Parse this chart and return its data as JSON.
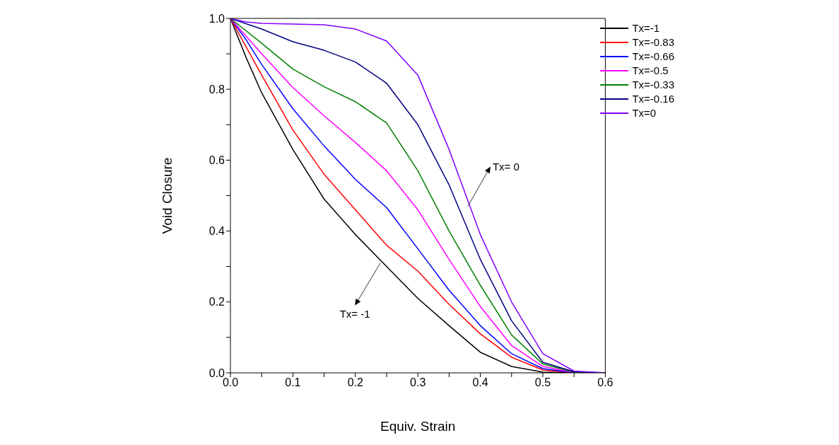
{
  "chart_data": {
    "type": "line",
    "xlabel": "Equiv. Strain",
    "ylabel": "Void Closure",
    "x": [
      0,
      0.025,
      0.05,
      0.1,
      0.15,
      0.2,
      0.25,
      0.3,
      0.35,
      0.4,
      0.45,
      0.5,
      0.55,
      0.6
    ],
    "series": [
      {
        "name": "Tx=-1",
        "color": "#000000",
        "values": [
          1,
          0.89,
          0.79,
          0.63,
          0.49,
          0.39,
          0.3,
          0.21,
          0.133,
          0.058,
          0.018,
          0.002,
          0,
          0
        ]
      },
      {
        "name": "Tx=-0.83",
        "color": "#ff0000",
        "values": [
          1,
          0.92,
          0.84,
          0.685,
          0.56,
          0.46,
          0.36,
          0.287,
          0.193,
          0.11,
          0.044,
          0.008,
          0,
          0
        ]
      },
      {
        "name": "Tx=-0.66",
        "color": "#0000ff",
        "values": [
          1,
          0.94,
          0.87,
          0.745,
          0.64,
          0.546,
          0.466,
          0.35,
          0.233,
          0.133,
          0.054,
          0.012,
          0,
          0
        ]
      },
      {
        "name": "Tx=-0.5",
        "color": "#ff00ff",
        "values": [
          1,
          0.95,
          0.9,
          0.805,
          0.725,
          0.65,
          0.57,
          0.46,
          0.32,
          0.187,
          0.077,
          0.018,
          0.001,
          0
        ]
      },
      {
        "name": "Tx=-0.33",
        "color": "#008000",
        "values": [
          1,
          0.965,
          0.93,
          0.857,
          0.807,
          0.765,
          0.705,
          0.57,
          0.4,
          0.247,
          0.107,
          0.025,
          0.002,
          0
        ]
      },
      {
        "name": "Tx=-0.16",
        "color": "#000080",
        "values": [
          1,
          0.985,
          0.97,
          0.934,
          0.91,
          0.877,
          0.817,
          0.7,
          0.53,
          0.32,
          0.147,
          0.03,
          0.003,
          0
        ]
      },
      {
        "name": "Tx=0",
        "color": "#8000ff",
        "values": [
          1,
          0.99,
          0.986,
          0.984,
          0.982,
          0.97,
          0.936,
          0.84,
          0.63,
          0.39,
          0.2,
          0.054,
          0.005,
          0
        ]
      }
    ],
    "xlim": [
      0,
      0.6
    ],
    "xticks": [
      {
        "value": 0,
        "label": "0.0"
      },
      {
        "value": 0.05,
        "label": null
      },
      {
        "value": 0.1,
        "label": "0.1"
      },
      {
        "value": 0.15,
        "label": null
      },
      {
        "value": 0.2,
        "label": "0.2"
      },
      {
        "value": 0.25,
        "label": null
      },
      {
        "value": 0.3,
        "label": "0.3"
      },
      {
        "value": 0.35,
        "label": null
      },
      {
        "value": 0.4,
        "label": "0.4"
      },
      {
        "value": 0.45,
        "label": null
      },
      {
        "value": 0.5,
        "label": "0.5"
      },
      {
        "value": 0.55,
        "label": null
      },
      {
        "value": 0.6,
        "label": "0.6"
      }
    ],
    "ylim": [
      0,
      1
    ],
    "yticks": [
      {
        "value": 0,
        "label": "0.0"
      },
      {
        "value": 0.1,
        "label": null
      },
      {
        "value": 0.2,
        "label": "0.2"
      },
      {
        "value": 0.3,
        "label": null
      },
      {
        "value": 0.4,
        "label": "0.4"
      },
      {
        "value": 0.5,
        "label": null
      },
      {
        "value": 0.6,
        "label": "0.6"
      },
      {
        "value": 0.7,
        "label": null
      },
      {
        "value": 0.8,
        "label": "0.8"
      },
      {
        "value": 0.9,
        "label": null
      },
      {
        "value": 1,
        "label": "1.0"
      }
    ],
    "legend": "top right",
    "grid": false,
    "annotations": [
      {
        "text": "Tx= 0",
        "x": 0.38,
        "y": 0.47
      },
      {
        "text": "Tx= -1",
        "x": 0.24,
        "y": 0.31
      }
    ]
  }
}
